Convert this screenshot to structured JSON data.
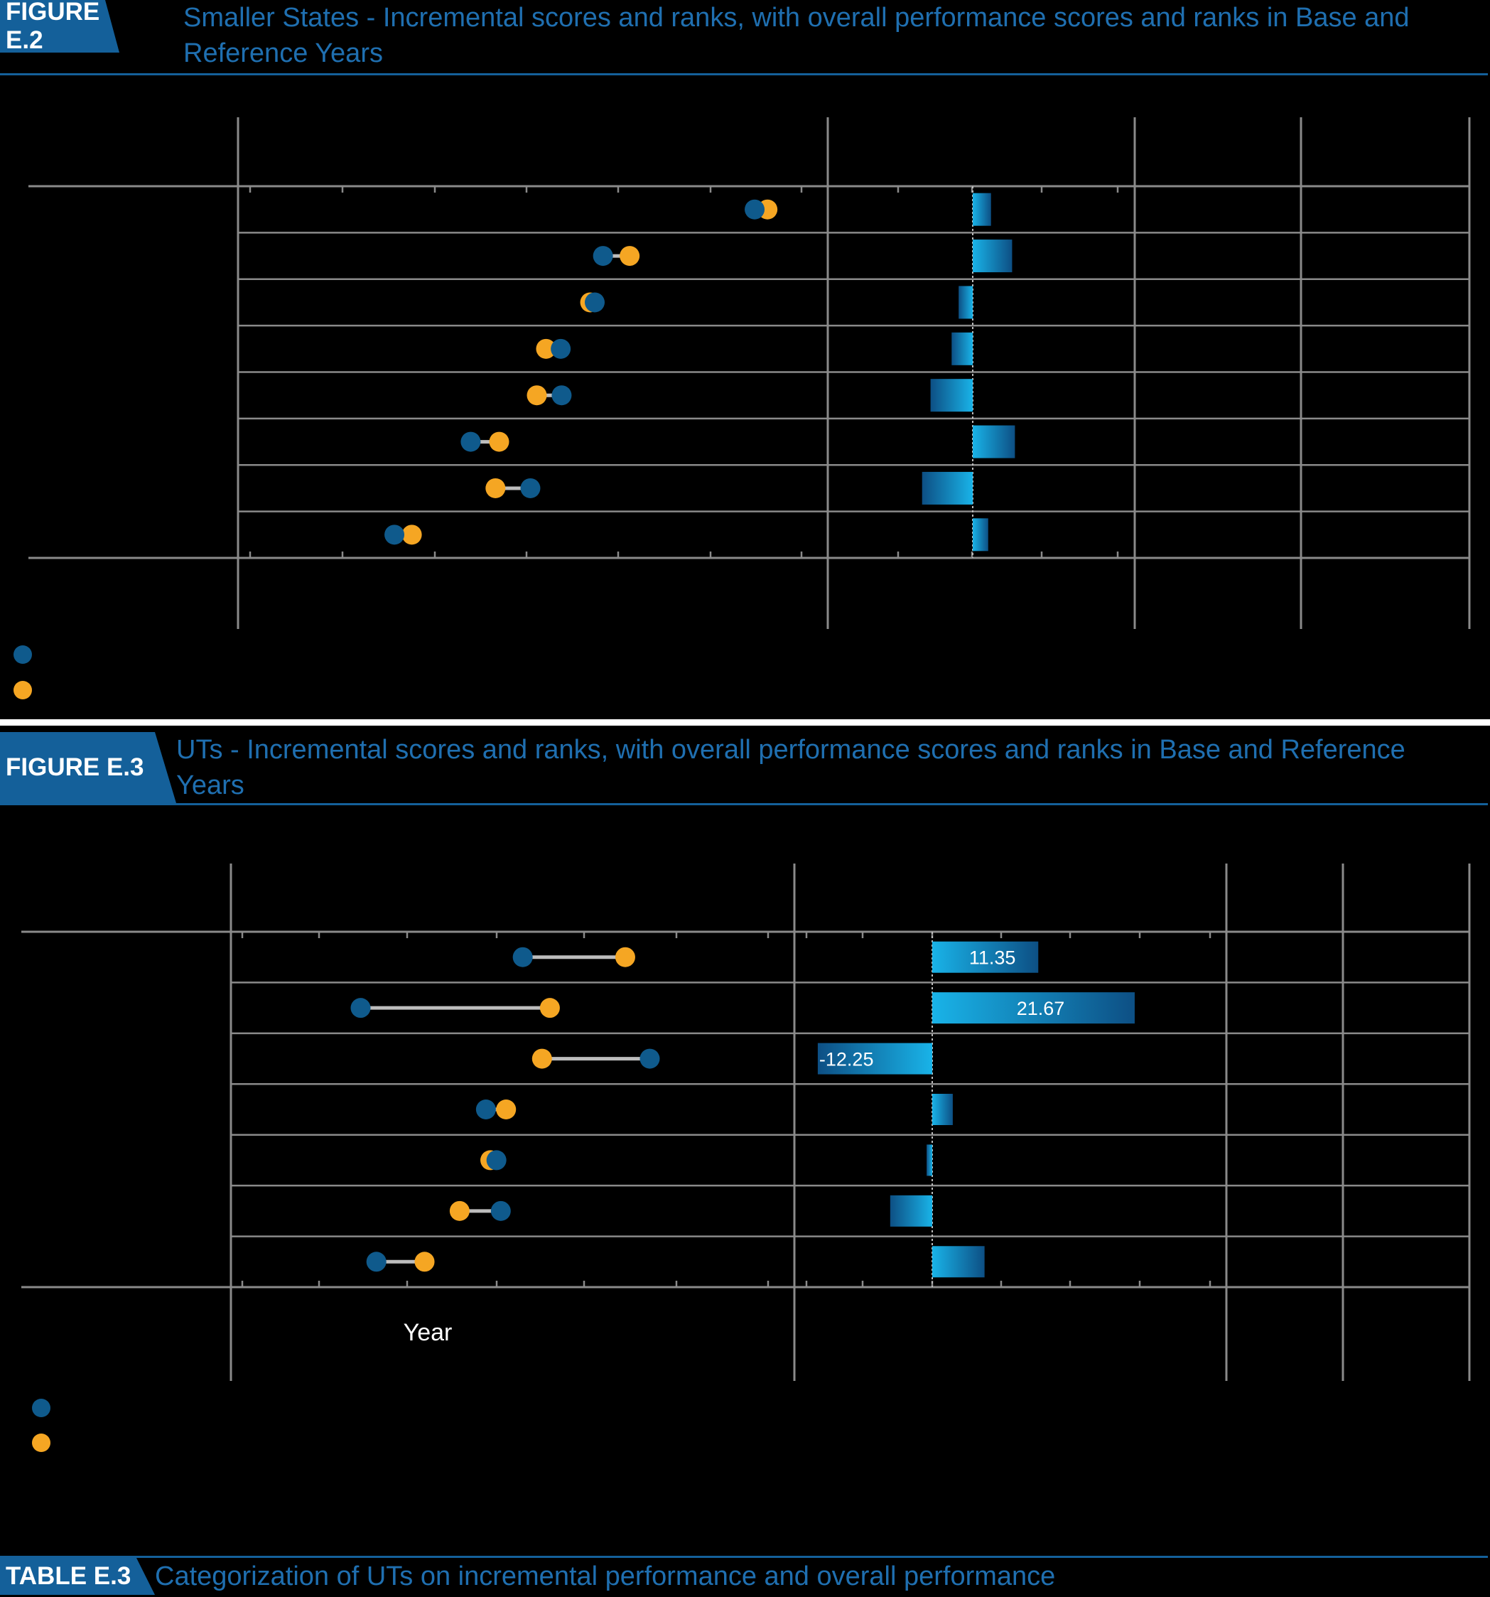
{
  "figures": [
    {
      "tag": "FIGURE E.2",
      "title": "Smaller States - Incremental scores and ranks, with overall performance scores and ranks in Base and Reference Years"
    },
    {
      "tag": "FIGURE E.3",
      "title": "UTs - Incremental scores and ranks, with overall performance scores and ranks in Base and Reference Years"
    }
  ],
  "table": {
    "tag": "TABLE E.3",
    "title": "Categorization of UTs on incremental performance and overall performance"
  },
  "colors": {
    "base": "#0f5a8c",
    "reference": "#f5a623",
    "bar_light": "#19b3e8",
    "bar_dark": "#0d4f84",
    "grid": "#8a8a8a"
  },
  "chart_data": [
    {
      "type": "dumbbell+bar",
      "chart": "fig-e2",
      "rows": 8,
      "series": [
        {
          "key": "base",
          "values": [
            54.9,
            38.4,
            37.5,
            33.8,
            33.9,
            24.0,
            30.5,
            15.7
          ]
        },
        {
          "key": "reference",
          "values": [
            56.3,
            41.3,
            37.0,
            32.2,
            31.2,
            27.1,
            26.7,
            17.6
          ]
        }
      ],
      "incremental": [
        1.3,
        2.8,
        -1.0,
        -1.5,
        -3.0,
        3.0,
        -3.6,
        1.1
      ]
    },
    {
      "type": "dumbbell+bar",
      "chart": "fig-e3",
      "rows": 7,
      "series": [
        {
          "key": "base",
          "values": [
            32.0,
            13.5,
            46.5,
            27.8,
            29.0,
            29.5,
            15.3
          ]
        },
        {
          "key": "reference",
          "values": [
            43.7,
            35.1,
            34.2,
            30.1,
            28.3,
            24.8,
            20.8
          ]
        }
      ],
      "incremental": [
        11.35,
        21.67,
        -12.25,
        2.2,
        -0.6,
        -4.5,
        5.6
      ],
      "bar_labels": [
        "11.35",
        "21.67",
        "-12.25",
        "",
        "",
        "",
        ""
      ],
      "axis_text": "Year"
    }
  ]
}
